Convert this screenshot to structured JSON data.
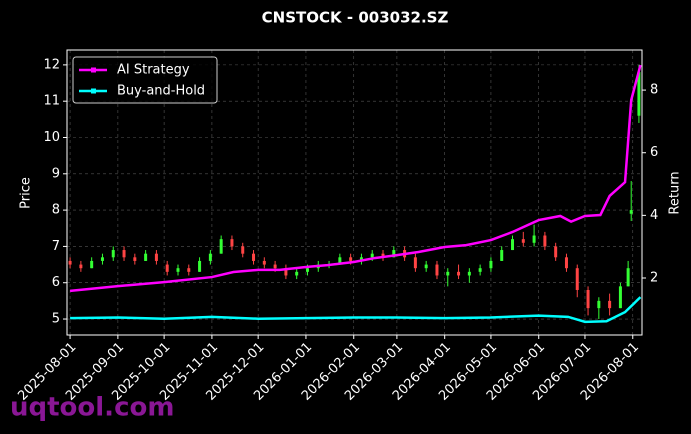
{
  "chart_data": {
    "type": "candlestick",
    "title": "CNSTOCK - 003032.SZ",
    "ylabel": "Price",
    "y2label": "Return",
    "watermark": "uqtool.com",
    "grid": true,
    "legend": "upper left",
    "up_color": "#33ff33",
    "down_color": "#ff4444",
    "xlim": [
      "2025-07-30",
      "2026-08-07"
    ],
    "xticks": [
      "2025-08-01",
      "2025-09-01",
      "2025-10-01",
      "2025-11-01",
      "2025-12-01",
      "2026-01-01",
      "2026-02-01",
      "2026-03-01",
      "2026-04-01",
      "2026-05-01",
      "2026-06-01",
      "2026-07-01",
      "2026-08-01"
    ],
    "ylim": [
      4.56,
      12.41
    ],
    "yticks": [
      5,
      6,
      7,
      8,
      9,
      10,
      11,
      12
    ],
    "y2lim": [
      0.18,
      9.28
    ],
    "y2ticks": [
      2,
      4,
      6,
      8
    ],
    "x": [
      "2025-08-01",
      "2025-08-08",
      "2025-08-15",
      "2025-08-22",
      "2025-08-29",
      "2025-09-05",
      "2025-09-12",
      "2025-09-19",
      "2025-09-26",
      "2025-10-03",
      "2025-10-10",
      "2025-10-17",
      "2025-10-24",
      "2025-10-31",
      "2025-11-07",
      "2025-11-14",
      "2025-11-21",
      "2025-11-28",
      "2025-12-05",
      "2025-12-12",
      "2025-12-19",
      "2025-12-26",
      "2026-01-02",
      "2026-01-09",
      "2026-01-16",
      "2026-01-23",
      "2026-01-30",
      "2026-02-06",
      "2026-02-13",
      "2026-02-20",
      "2026-02-27",
      "2026-03-06",
      "2026-03-13",
      "2026-03-20",
      "2026-03-27",
      "2026-04-03",
      "2026-04-10",
      "2026-04-17",
      "2026-04-24",
      "2026-05-01",
      "2026-05-08",
      "2026-05-15",
      "2026-05-22",
      "2026-05-29",
      "2026-06-05",
      "2026-06-12",
      "2026-06-19",
      "2026-06-26",
      "2026-07-03",
      "2026-07-10",
      "2026-07-17",
      "2026-07-24",
      "2026-07-29",
      "2026-07-31",
      "2026-08-05"
    ],
    "open": [
      6.6,
      6.5,
      6.4,
      6.6,
      6.7,
      6.9,
      6.7,
      6.6,
      6.8,
      6.5,
      6.3,
      6.4,
      6.3,
      6.6,
      6.8,
      7.2,
      7.0,
      6.8,
      6.6,
      6.5,
      6.4,
      6.2,
      6.3,
      6.4,
      6.5,
      6.5,
      6.7,
      6.6,
      6.7,
      6.8,
      6.7,
      6.9,
      6.7,
      6.4,
      6.5,
      6.2,
      6.3,
      6.2,
      6.3,
      6.4,
      6.6,
      6.9,
      7.2,
      7.1,
      7.3,
      7.0,
      6.7,
      6.4,
      5.8,
      5.3,
      5.5,
      5.3,
      5.9,
      7.9,
      10.6
    ],
    "high": [
      6.7,
      6.6,
      6.7,
      6.8,
      7.0,
      7.0,
      6.8,
      6.9,
      6.9,
      6.6,
      6.5,
      6.5,
      6.7,
      6.9,
      7.3,
      7.3,
      7.1,
      6.9,
      6.7,
      6.6,
      6.5,
      6.4,
      6.5,
      6.6,
      6.6,
      6.8,
      6.8,
      6.8,
      6.9,
      6.9,
      7.0,
      7.0,
      6.8,
      6.6,
      6.6,
      6.4,
      6.5,
      6.4,
      6.5,
      6.7,
      7.0,
      7.3,
      7.4,
      7.6,
      7.4,
      7.1,
      6.8,
      6.5,
      5.9,
      5.6,
      5.7,
      6.0,
      6.6,
      8.8,
      12.0
    ],
    "low": [
      6.4,
      6.3,
      6.4,
      6.5,
      6.6,
      6.6,
      6.5,
      6.6,
      6.5,
      6.2,
      6.2,
      6.2,
      6.3,
      6.5,
      6.8,
      6.9,
      6.7,
      6.5,
      6.4,
      6.3,
      6.1,
      6.1,
      6.2,
      6.3,
      6.4,
      6.5,
      6.5,
      6.5,
      6.6,
      6.6,
      6.7,
      6.6,
      6.3,
      6.3,
      6.1,
      5.9,
      6.1,
      6.0,
      6.2,
      6.3,
      6.6,
      6.9,
      7.0,
      7.0,
      6.9,
      6.6,
      6.3,
      5.6,
      5.1,
      5.0,
      5.1,
      5.3,
      5.9,
      7.7,
      10.4
    ],
    "close": [
      6.5,
      6.4,
      6.6,
      6.7,
      6.9,
      6.7,
      6.6,
      6.8,
      6.6,
      6.3,
      6.4,
      6.3,
      6.6,
      6.8,
      7.2,
      7.0,
      6.8,
      6.6,
      6.5,
      6.4,
      6.2,
      6.3,
      6.4,
      6.5,
      6.5,
      6.7,
      6.6,
      6.7,
      6.8,
      6.7,
      6.9,
      6.7,
      6.4,
      6.5,
      6.2,
      6.3,
      6.2,
      6.3,
      6.4,
      6.6,
      6.9,
      7.2,
      7.1,
      7.3,
      7.0,
      6.7,
      6.4,
      5.8,
      5.3,
      5.5,
      5.3,
      5.9,
      6.4,
      8.0,
      11.8
    ],
    "series": [
      {
        "name": "AI Strategy",
        "color": "#ff00ff",
        "axis": "y2",
        "x": [
          "2025-08-01",
          "2025-09-01",
          "2025-10-01",
          "2025-11-01",
          "2025-11-15",
          "2025-12-01",
          "2025-12-15",
          "2026-01-01",
          "2026-01-15",
          "2026-02-01",
          "2026-02-15",
          "2026-03-01",
          "2026-03-15",
          "2026-04-01",
          "2026-04-15",
          "2026-05-01",
          "2026-05-15",
          "2026-06-01",
          "2026-06-15",
          "2026-06-22",
          "2026-07-01",
          "2026-07-11",
          "2026-07-17",
          "2026-07-27",
          "2026-07-31",
          "2026-08-06"
        ],
        "values": [
          1.59,
          1.74,
          1.87,
          2.03,
          2.19,
          2.26,
          2.26,
          2.35,
          2.41,
          2.51,
          2.64,
          2.73,
          2.83,
          2.99,
          3.05,
          3.21,
          3.47,
          3.85,
          3.98,
          3.8,
          3.98,
          4.01,
          4.62,
          5.06,
          7.68,
          8.8
        ]
      },
      {
        "name": "Buy-and-Hold",
        "color": "#00ffff",
        "axis": "y2",
        "x": [
          "2025-08-01",
          "2025-09-01",
          "2025-10-01",
          "2025-11-01",
          "2025-12-01",
          "2026-01-01",
          "2026-02-01",
          "2026-03-01",
          "2026-04-01",
          "2026-05-01",
          "2026-06-01",
          "2026-06-20",
          "2026-07-01",
          "2026-07-15",
          "2026-07-27",
          "2026-08-06"
        ],
        "values": [
          0.72,
          0.74,
          0.7,
          0.76,
          0.7,
          0.72,
          0.74,
          0.74,
          0.72,
          0.74,
          0.8,
          0.76,
          0.6,
          0.62,
          0.91,
          1.39
        ]
      }
    ]
  }
}
